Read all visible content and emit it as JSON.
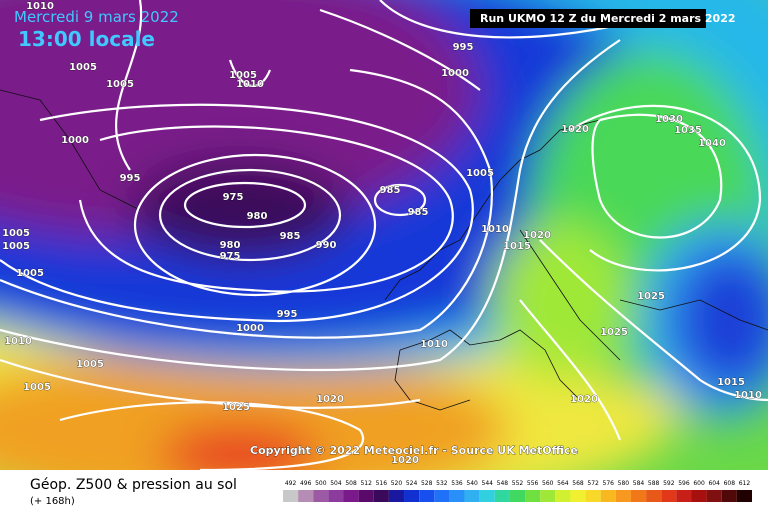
{
  "header": {
    "date": "Mercredi 9 mars 2022",
    "time": "13:00 locale",
    "run": "Run UKMO 12 Z du Mercredi 2 mars 2022"
  },
  "copyright": "Copyright © 2022 Meteociel.fr - Source UK MetOffice",
  "footer": {
    "title": "Géop. Z500 & pression au sol",
    "subtitle": "(+ 168h)"
  },
  "isobar_labels": [
    "1010",
    "995",
    "1000",
    "1005",
    "1005",
    "1005",
    "1010",
    "1000",
    "995",
    "975",
    "980",
    "985",
    "985",
    "985",
    "990",
    "980",
    "975",
    "1005",
    "1010",
    "1015",
    "1020",
    "1020",
    "1030",
    "1035",
    "1040",
    "1025",
    "1025",
    "1015",
    "1010",
    "1020",
    "1010",
    "995",
    "1000",
    "1005",
    "1005",
    "1010",
    "1005",
    "1005",
    "1005",
    "1025",
    "1020",
    "1020"
  ],
  "colorbar": {
    "ticks": [
      "492",
      "496",
      "500",
      "504",
      "508",
      "512",
      "516",
      "520",
      "524",
      "528",
      "532",
      "536",
      "540",
      "544",
      "548",
      "552",
      "556",
      "560",
      "564",
      "568",
      "572",
      "576",
      "580",
      "584",
      "588",
      "592",
      "596",
      "600",
      "604",
      "608",
      "612"
    ],
    "colors": [
      "#c8c8c8",
      "#b48cb4",
      "#9c5aa4",
      "#8c3c9c",
      "#7a1a8a",
      "#5a0a6a",
      "#3a0a5a",
      "#1818a0",
      "#1030d0",
      "#1850f0",
      "#2070f8",
      "#2890f8",
      "#30b0f0",
      "#30d0e0",
      "#30d8a0",
      "#40d860",
      "#70e040",
      "#a0e838",
      "#d0f030",
      "#f0f030",
      "#f8d828",
      "#f8b820",
      "#f89820",
      "#f07818",
      "#e85818",
      "#e03818",
      "#c82018",
      "#a81010",
      "#801010",
      "#500808",
      "#200000"
    ]
  }
}
